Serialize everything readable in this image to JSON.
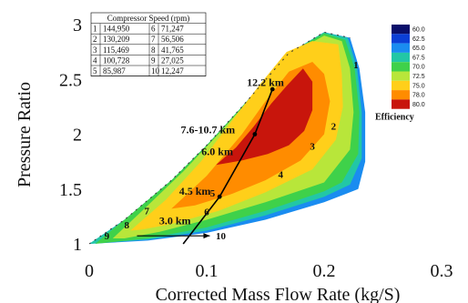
{
  "chart_data": {
    "type": "contour",
    "xlabel": "Corrected Mass Flow Rate (kg/S)",
    "ylabel": "Pressure Ratio",
    "xlim": [
      0,
      0.3
    ],
    "ylim": [
      1,
      3
    ],
    "x_ticks": [
      "0",
      "0.1",
      "0.2",
      "0.3"
    ],
    "y_ticks": [
      "1",
      "1.5",
      "2",
      "2.5",
      "3"
    ],
    "legend": {
      "title": "Efficiency",
      "placement": "right",
      "levels": [
        {
          "label": "60.0",
          "color": "#0a0f6b"
        },
        {
          "label": "62.5",
          "color": "#0b3fd6"
        },
        {
          "label": "65.0",
          "color": "#1a8cf0"
        },
        {
          "label": "67.5",
          "color": "#22c7a6"
        },
        {
          "label": "70.0",
          "color": "#3fd14a"
        },
        {
          "label": "72.5",
          "color": "#b8e63a"
        },
        {
          "label": "75.0",
          "color": "#ffcf1a"
        },
        {
          "label": "78.0",
          "color": "#ff8c00"
        },
        {
          "label": "80.0",
          "color": "#c8150c"
        }
      ]
    },
    "speed_table": {
      "title": "Compressor Speed (rpm)",
      "rows": [
        {
          "line": "1",
          "rpm": "144,950"
        },
        {
          "line": "2",
          "rpm": "130,209"
        },
        {
          "line": "3",
          "rpm": "115,469"
        },
        {
          "line": "4",
          "rpm": "100,728"
        },
        {
          "line": "5",
          "rpm": "85,987"
        },
        {
          "line": "6",
          "rpm": "71,247"
        },
        {
          "line": "7",
          "rpm": "56,506"
        },
        {
          "line": "8",
          "rpm": "41,765"
        },
        {
          "line": "9",
          "rpm": "27,025"
        },
        {
          "line": "10",
          "rpm": "12,247"
        }
      ]
    },
    "speed_line_labels": [
      {
        "label": "1",
        "x": 0.227,
        "y": 2.6
      },
      {
        "label": "2",
        "x": 0.208,
        "y": 2.04
      },
      {
        "label": "3",
        "x": 0.19,
        "y": 1.86
      },
      {
        "label": "4",
        "x": 0.163,
        "y": 1.6
      },
      {
        "label": "5",
        "x": 0.105,
        "y": 1.43
      },
      {
        "label": "6",
        "x": 0.1,
        "y": 1.26
      },
      {
        "label": "7",
        "x": 0.049,
        "y": 1.27
      },
      {
        "label": "8",
        "x": 0.032,
        "y": 1.14
      },
      {
        "label": "9",
        "x": 0.015,
        "y": 1.04
      },
      {
        "label": "10",
        "x": 0.112,
        "y": 1.04
      }
    ],
    "operating_points": [
      {
        "label": "12.2 km",
        "x": 0.15,
        "y": 2.44
      },
      {
        "label": "7.6-10.7 km",
        "x": 0.101,
        "y": 2.01
      },
      {
        "label": "6.0 km",
        "x": 0.109,
        "y": 1.81
      },
      {
        "label": "4.5 km",
        "x": 0.09,
        "y": 1.45
      },
      {
        "label": "3.0 km",
        "x": 0.073,
        "y": 1.18
      }
    ],
    "operating_line": [
      {
        "x": 0.08,
        "y": 1.0
      },
      {
        "x": 0.111,
        "y": 1.43
      },
      {
        "x": 0.141,
        "y": 2.0
      },
      {
        "x": 0.156,
        "y": 2.41
      }
    ],
    "efficiency_regions": [
      {
        "level": "65.0",
        "polygon": [
          [
            0.0,
            1.0
          ],
          [
            0.03,
            1.22
          ],
          [
            0.07,
            1.58
          ],
          [
            0.1,
            1.9
          ],
          [
            0.13,
            2.25
          ],
          [
            0.17,
            2.74
          ],
          [
            0.2,
            2.93
          ],
          [
            0.222,
            2.88
          ],
          [
            0.23,
            2.6
          ],
          [
            0.235,
            2.2
          ],
          [
            0.235,
            1.75
          ],
          [
            0.229,
            1.5
          ],
          [
            0.2,
            1.38
          ],
          [
            0.15,
            1.22
          ],
          [
            0.1,
            1.1
          ],
          [
            0.05,
            1.03
          ]
        ]
      },
      {
        "level": "67.5",
        "polygon": [
          [
            0.0,
            1.0
          ],
          [
            0.03,
            1.22
          ],
          [
            0.07,
            1.58
          ],
          [
            0.1,
            1.9
          ],
          [
            0.13,
            2.25
          ],
          [
            0.17,
            2.74
          ],
          [
            0.2,
            2.93
          ],
          [
            0.22,
            2.88
          ],
          [
            0.228,
            2.6
          ],
          [
            0.232,
            2.2
          ],
          [
            0.232,
            1.78
          ],
          [
            0.222,
            1.54
          ],
          [
            0.2,
            1.43
          ],
          [
            0.15,
            1.26
          ],
          [
            0.1,
            1.12
          ],
          [
            0.05,
            1.04
          ]
        ]
      },
      {
        "level": "70.0",
        "polygon": [
          [
            0.005,
            1.0
          ],
          [
            0.03,
            1.22
          ],
          [
            0.07,
            1.58
          ],
          [
            0.1,
            1.9
          ],
          [
            0.13,
            2.25
          ],
          [
            0.17,
            2.74
          ],
          [
            0.2,
            2.92
          ],
          [
            0.218,
            2.86
          ],
          [
            0.226,
            2.6
          ],
          [
            0.23,
            2.2
          ],
          [
            0.229,
            1.82
          ],
          [
            0.215,
            1.56
          ],
          [
            0.2,
            1.48
          ],
          [
            0.15,
            1.3
          ],
          [
            0.1,
            1.15
          ],
          [
            0.05,
            1.05
          ]
        ]
      },
      {
        "level": "72.5",
        "polygon": [
          [
            0.02,
            1.05
          ],
          [
            0.045,
            1.3
          ],
          [
            0.08,
            1.66
          ],
          [
            0.11,
            2.0
          ],
          [
            0.14,
            2.36
          ],
          [
            0.17,
            2.72
          ],
          [
            0.2,
            2.9
          ],
          [
            0.215,
            2.85
          ],
          [
            0.222,
            2.6
          ],
          [
            0.225,
            2.2
          ],
          [
            0.222,
            1.86
          ],
          [
            0.2,
            1.56
          ],
          [
            0.15,
            1.38
          ],
          [
            0.1,
            1.22
          ],
          [
            0.06,
            1.11
          ],
          [
            0.03,
            1.05
          ]
        ]
      },
      {
        "level": "75.0",
        "polygon": [
          [
            0.035,
            1.12
          ],
          [
            0.065,
            1.4
          ],
          [
            0.095,
            1.75
          ],
          [
            0.12,
            2.1
          ],
          [
            0.145,
            2.45
          ],
          [
            0.168,
            2.75
          ],
          [
            0.19,
            2.85
          ],
          [
            0.212,
            2.82
          ],
          [
            0.215,
            2.55
          ],
          [
            0.216,
            2.25
          ],
          [
            0.21,
            1.95
          ],
          [
            0.19,
            1.68
          ],
          [
            0.15,
            1.47
          ],
          [
            0.11,
            1.3
          ],
          [
            0.07,
            1.18
          ],
          [
            0.045,
            1.13
          ]
        ]
      },
      {
        "level": "78.0",
        "polygon": [
          [
            0.07,
            1.32
          ],
          [
            0.1,
            1.62
          ],
          [
            0.13,
            2.0
          ],
          [
            0.15,
            2.3
          ],
          [
            0.17,
            2.57
          ],
          [
            0.19,
            2.66
          ],
          [
            0.2,
            2.55
          ],
          [
            0.205,
            2.3
          ],
          [
            0.2,
            2.0
          ],
          [
            0.18,
            1.76
          ],
          [
            0.15,
            1.58
          ],
          [
            0.12,
            1.45
          ],
          [
            0.09,
            1.35
          ]
        ]
      },
      {
        "level": "80.0",
        "polygon": [
          [
            0.108,
            1.72
          ],
          [
            0.125,
            1.88
          ],
          [
            0.14,
            2.07
          ],
          [
            0.155,
            2.28
          ],
          [
            0.168,
            2.44
          ],
          [
            0.182,
            2.6
          ],
          [
            0.19,
            2.48
          ],
          [
            0.19,
            2.22
          ],
          [
            0.183,
            2.03
          ],
          [
            0.17,
            1.9
          ],
          [
            0.152,
            1.82
          ],
          [
            0.13,
            1.76
          ]
        ]
      }
    ],
    "surge_line": [
      [
        0.0,
        1.0
      ],
      [
        0.03,
        1.22
      ],
      [
        0.07,
        1.58
      ],
      [
        0.1,
        1.9
      ],
      [
        0.13,
        2.25
      ],
      [
        0.17,
        2.74
      ],
      [
        0.2,
        2.93
      ],
      [
        0.222,
        2.88
      ]
    ]
  }
}
